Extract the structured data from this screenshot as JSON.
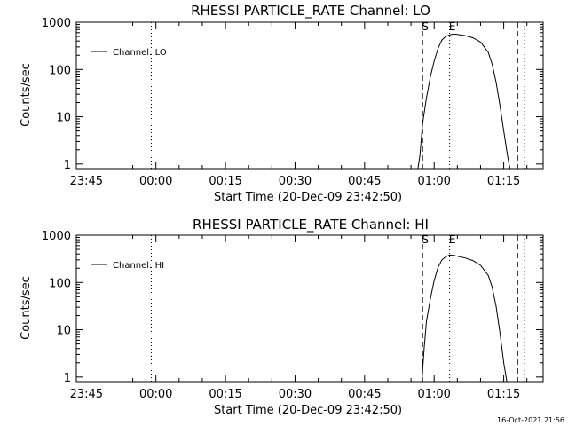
{
  "timestamp": "16-Oct-2021 21:56",
  "chart_data": [
    {
      "type": "line",
      "title": "RHESSI PARTICLE_RATE Channel: LO",
      "xlabel": "Start Time (20-Dec-09 23:42:50)",
      "ylabel": "Counts/sec",
      "yscale": "log",
      "ylim": [
        0.8,
        1000
      ],
      "xlim": [
        "23:42:50",
        "01:23:30"
      ],
      "xticks": [
        "23:45",
        "00:00",
        "00:15",
        "00:30",
        "00:45",
        "01:00",
        "01:15"
      ],
      "yticks": [
        "1",
        "10",
        "100",
        "1000"
      ],
      "grid": false,
      "legend": {
        "position": "top-left",
        "entries": [
          "Channel: LO"
        ]
      },
      "markers": [
        {
          "label": "",
          "time": "23:59:00",
          "style": "dotted"
        },
        {
          "label": "S",
          "time": "00:57:30",
          "style": "dashed"
        },
        {
          "label": "E",
          "time": "01:03:20",
          "style": "dotted"
        },
        {
          "label": "",
          "time": "01:18:00",
          "style": "dashed"
        },
        {
          "label": "",
          "time": "01:19:30",
          "style": "dotted"
        }
      ],
      "series": [
        {
          "name": "Channel: LO",
          "x": [
            "00:56:30",
            "00:56:55",
            "00:57:30",
            "00:58:20",
            "00:59:10",
            "01:00:00",
            "01:00:50",
            "01:01:40",
            "01:02:30",
            "01:03:20",
            "01:04:10",
            "01:05:00",
            "01:06:40",
            "01:08:20",
            "01:10:00",
            "01:11:40",
            "01:12:30",
            "01:13:20",
            "01:14:10",
            "01:15:00",
            "01:15:50",
            "01:16:20"
          ],
          "y": [
            0.8,
            1.5,
            7,
            25,
            70,
            150,
            280,
            420,
            500,
            540,
            560,
            550,
            520,
            470,
            380,
            230,
            130,
            55,
            18,
            5,
            1.5,
            0.8
          ]
        }
      ]
    },
    {
      "type": "line",
      "title": "RHESSI PARTICLE_RATE Channel: HI",
      "xlabel": "Start Time (20-Dec-09 23:42:50)",
      "ylabel": "Counts/sec",
      "yscale": "log",
      "ylim": [
        0.8,
        1000
      ],
      "xlim": [
        "23:42:50",
        "01:23:30"
      ],
      "xticks": [
        "23:45",
        "00:00",
        "00:15",
        "00:30",
        "00:45",
        "01:00",
        "01:15"
      ],
      "yticks": [
        "1",
        "10",
        "100",
        "1000"
      ],
      "grid": false,
      "legend": {
        "position": "top-left",
        "entries": [
          "Channel: HI"
        ]
      },
      "markers": [
        {
          "label": "",
          "time": "23:59:00",
          "style": "dotted"
        },
        {
          "label": "S",
          "time": "00:57:30",
          "style": "dashed"
        },
        {
          "label": "E",
          "time": "01:03:20",
          "style": "dotted"
        },
        {
          "label": "",
          "time": "01:18:00",
          "style": "dashed"
        },
        {
          "label": "",
          "time": "01:19:30",
          "style": "dotted"
        }
      ],
      "series": [
        {
          "name": "Channel: HI",
          "x": [
            "00:57:20",
            "00:57:50",
            "00:58:20",
            "00:59:10",
            "01:00:00",
            "01:00:50",
            "01:01:40",
            "01:02:30",
            "01:03:20",
            "01:04:10",
            "01:05:00",
            "01:06:40",
            "01:08:20",
            "01:10:00",
            "01:11:40",
            "01:12:30",
            "01:13:20",
            "01:14:10",
            "01:15:00",
            "01:15:40"
          ],
          "y": [
            0.8,
            4,
            15,
            45,
            110,
            210,
            300,
            350,
            380,
            375,
            360,
            330,
            290,
            230,
            140,
            80,
            32,
            9,
            2,
            0.8
          ]
        }
      ]
    }
  ]
}
